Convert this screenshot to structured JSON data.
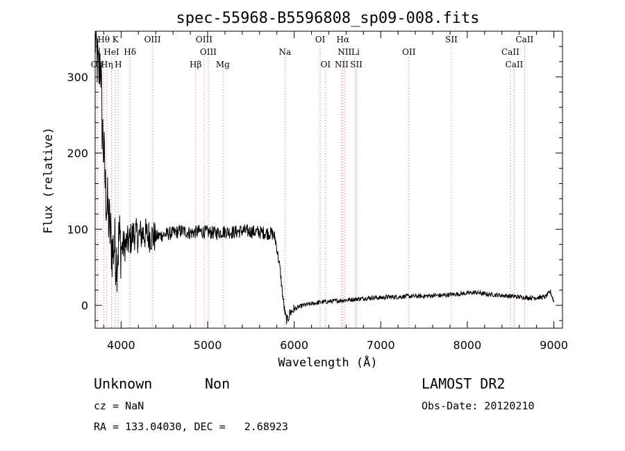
{
  "chart_data": {
    "type": "line",
    "title": "spec-55968-B5596808_sp09-008.fits",
    "xlabel": "Wavelength (Å)",
    "ylabel": "Flux (relative)",
    "xlim": [
      3700,
      9100
    ],
    "ylim": [
      -30,
      360
    ],
    "x_ticks": [
      4000,
      5000,
      6000,
      7000,
      8000,
      9000
    ],
    "y_ticks": [
      0,
      100,
      200,
      300
    ],
    "grid": false,
    "series": [
      {
        "color": "#000000",
        "points": [
          [
            3700,
            355
          ],
          [
            3740,
            300
          ],
          [
            3760,
            330
          ],
          [
            3780,
            240
          ],
          [
            3800,
            200
          ],
          [
            3820,
            150
          ],
          [
            3850,
            120
          ],
          [
            3880,
            90
          ],
          [
            3900,
            70
          ],
          [
            3920,
            80
          ],
          [
            3950,
            60
          ],
          [
            3980,
            90
          ],
          [
            4000,
            75
          ],
          [
            4050,
            80
          ],
          [
            4100,
            85
          ],
          [
            4150,
            95
          ],
          [
            4200,
            90
          ],
          [
            4250,
            95
          ],
          [
            4300,
            92
          ],
          [
            4400,
            90
          ],
          [
            4500,
            93
          ],
          [
            4600,
            95
          ],
          [
            4700,
            98
          ],
          [
            4800,
            95
          ],
          [
            4900,
            97
          ],
          [
            5000,
            96
          ],
          [
            5100,
            95
          ],
          [
            5200,
            97
          ],
          [
            5300,
            96
          ],
          [
            5400,
            98
          ],
          [
            5500,
            97
          ],
          [
            5600,
            96
          ],
          [
            5700,
            95
          ],
          [
            5750,
            94
          ],
          [
            5780,
            88
          ],
          [
            5800,
            75
          ],
          [
            5820,
            60
          ],
          [
            5840,
            45
          ],
          [
            5860,
            20
          ],
          [
            5880,
            0
          ],
          [
            5900,
            -15
          ],
          [
            5920,
            -20
          ],
          [
            5950,
            -10
          ],
          [
            6000,
            -5
          ],
          [
            6100,
            0
          ],
          [
            6200,
            2
          ],
          [
            6300,
            4
          ],
          [
            6400,
            5
          ],
          [
            6500,
            6
          ],
          [
            6600,
            7
          ],
          [
            6700,
            8
          ],
          [
            6800,
            9
          ],
          [
            6900,
            10
          ],
          [
            7000,
            10
          ],
          [
            7100,
            11
          ],
          [
            7200,
            11
          ],
          [
            7300,
            12
          ],
          [
            7400,
            12
          ],
          [
            7500,
            12
          ],
          [
            7600,
            13
          ],
          [
            7700,
            13
          ],
          [
            7800,
            14
          ],
          [
            7900,
            15
          ],
          [
            8000,
            16
          ],
          [
            8100,
            17
          ],
          [
            8200,
            15
          ],
          [
            8300,
            14
          ],
          [
            8400,
            13
          ],
          [
            8500,
            12
          ],
          [
            8600,
            11
          ],
          [
            8700,
            10
          ],
          [
            8800,
            10
          ],
          [
            8900,
            11
          ],
          [
            8960,
            18
          ],
          [
            9000,
            5
          ]
        ]
      }
    ],
    "spectral_lines": [
      {
        "label": "Hθ",
        "wl": 3798,
        "row": 0
      },
      {
        "label": "K",
        "wl": 3934,
        "row": 0
      },
      {
        "label": "OIII",
        "wl": 4363,
        "row": 0
      },
      {
        "label": "OIII",
        "wl": 4959,
        "row": 0
      },
      {
        "label": "OI",
        "wl": 6300,
        "row": 0
      },
      {
        "label": "Hα",
        "wl": 6563,
        "row": 0
      },
      {
        "label": "SII",
        "wl": 7816,
        "row": 0
      },
      {
        "label": "CaII",
        "wl": 8662,
        "row": 0
      },
      {
        "label": "HeI",
        "wl": 3889,
        "row": 1
      },
      {
        "label": "Hδ",
        "wl": 4102,
        "row": 1
      },
      {
        "label": "OIII",
        "wl": 5007,
        "row": 1
      },
      {
        "label": "Na",
        "wl": 5893,
        "row": 1
      },
      {
        "label": "NII",
        "wl": 6583,
        "row": 1
      },
      {
        "label": "Li",
        "wl": 6708,
        "row": 1
      },
      {
        "label": "OII",
        "wl": 7325,
        "row": 1
      },
      {
        "label": "CaII",
        "wl": 8498,
        "row": 1
      },
      {
        "label": "OII",
        "wl": 3727,
        "row": 2
      },
      {
        "label": "Hη",
        "wl": 3835,
        "row": 2
      },
      {
        "label": "H",
        "wl": 3968,
        "row": 2
      },
      {
        "label": "Hβ",
        "wl": 4861,
        "row": 2
      },
      {
        "label": "Mg",
        "wl": 5175,
        "row": 2
      },
      {
        "label": "OI",
        "wl": 6363,
        "row": 2
      },
      {
        "label": "NII",
        "wl": 6548,
        "row": 2
      },
      {
        "label": "SII",
        "wl": 6717,
        "row": 2
      },
      {
        "label": "CaII",
        "wl": 8542,
        "row": 2
      }
    ]
  },
  "info": {
    "class": "Unknown",
    "subclass": "Non",
    "survey": "LAMOST DR2",
    "cz": "cz = NaN",
    "obs_date": "Obs-Date: 20120210",
    "radec": "RA = 133.04030, DEC =   2.68923"
  },
  "colors": {
    "line_markers": "#e06060",
    "spectrum": "#000000",
    "frame": "#000000"
  }
}
